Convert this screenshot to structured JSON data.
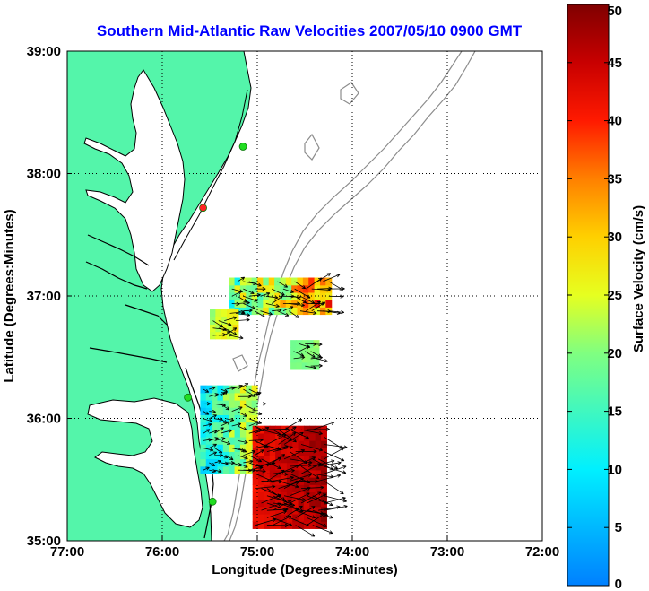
{
  "chart_data": {
    "type": "map",
    "title": "Southern Mid-Atlantic Raw Velocities 2007/05/10 0900 GMT",
    "xlabel": "Longitude (Degrees:Minutes)",
    "ylabel": "Latitude (Degrees:Minutes)",
    "xlim": [
      -77,
      -72
    ],
    "ylim": [
      35,
      39
    ],
    "x_ticks": [
      {
        "value": -77,
        "label": "77:00"
      },
      {
        "value": -76,
        "label": "76:00"
      },
      {
        "value": -75,
        "label": "75:00"
      },
      {
        "value": -74,
        "label": "74:00"
      },
      {
        "value": -73,
        "label": "73:00"
      },
      {
        "value": -72,
        "label": "72:00"
      }
    ],
    "y_ticks": [
      {
        "value": 35,
        "label": "35:00"
      },
      {
        "value": 36,
        "label": "36:00"
      },
      {
        "value": 37,
        "label": "37:00"
      },
      {
        "value": 38,
        "label": "38:00"
      },
      {
        "value": 39,
        "label": "39:00"
      }
    ],
    "grid": "dotted",
    "colorbar": {
      "label": "Surface Velocity (cm/s)",
      "range": [
        0,
        50
      ],
      "tick_labels": [
        "0",
        "5",
        "10",
        "15",
        "20",
        "25",
        "30",
        "35",
        "40",
        "45",
        "50"
      ]
    },
    "colors": {
      "land": "#54f5aa",
      "coastline": "#000000",
      "bathymetry": "#8c8c8c",
      "arrows": "#000000",
      "title": "#0000ff",
      "stations": "#22dd22",
      "station_alert": "#ff2222"
    },
    "stations": [
      {
        "lon": -75.15,
        "lat": 38.22,
        "status": "ok"
      },
      {
        "lon": -75.57,
        "lat": 37.72,
        "status": "alert"
      },
      {
        "lon": -75.73,
        "lat": 36.17,
        "status": "ok"
      },
      {
        "lon": -75.47,
        "lat": 35.32,
        "status": "ok"
      }
    ],
    "velocity_regions": [
      {
        "lon_range": [
          -75.3,
          -74.25
        ],
        "lat_range": [
          36.85,
          37.1
        ],
        "speed_range": [
          8,
          45
        ]
      },
      {
        "lon_range": [
          -75.5,
          -75.2
        ],
        "lat_range": [
          36.65,
          36.85
        ],
        "speed_range": [
          20,
          30
        ]
      },
      {
        "lon_range": [
          -74.65,
          -74.35
        ],
        "lat_range": [
          36.4,
          36.6
        ],
        "speed_range": [
          18,
          22
        ]
      },
      {
        "lon_range": [
          -75.6,
          -75.05
        ],
        "lat_range": [
          35.55,
          36.25
        ],
        "speed_range": [
          5,
          30
        ]
      },
      {
        "lon_range": [
          -75.05,
          -74.3
        ],
        "lat_range": [
          35.1,
          35.9
        ],
        "speed_range": [
          40,
          50
        ]
      }
    ]
  }
}
